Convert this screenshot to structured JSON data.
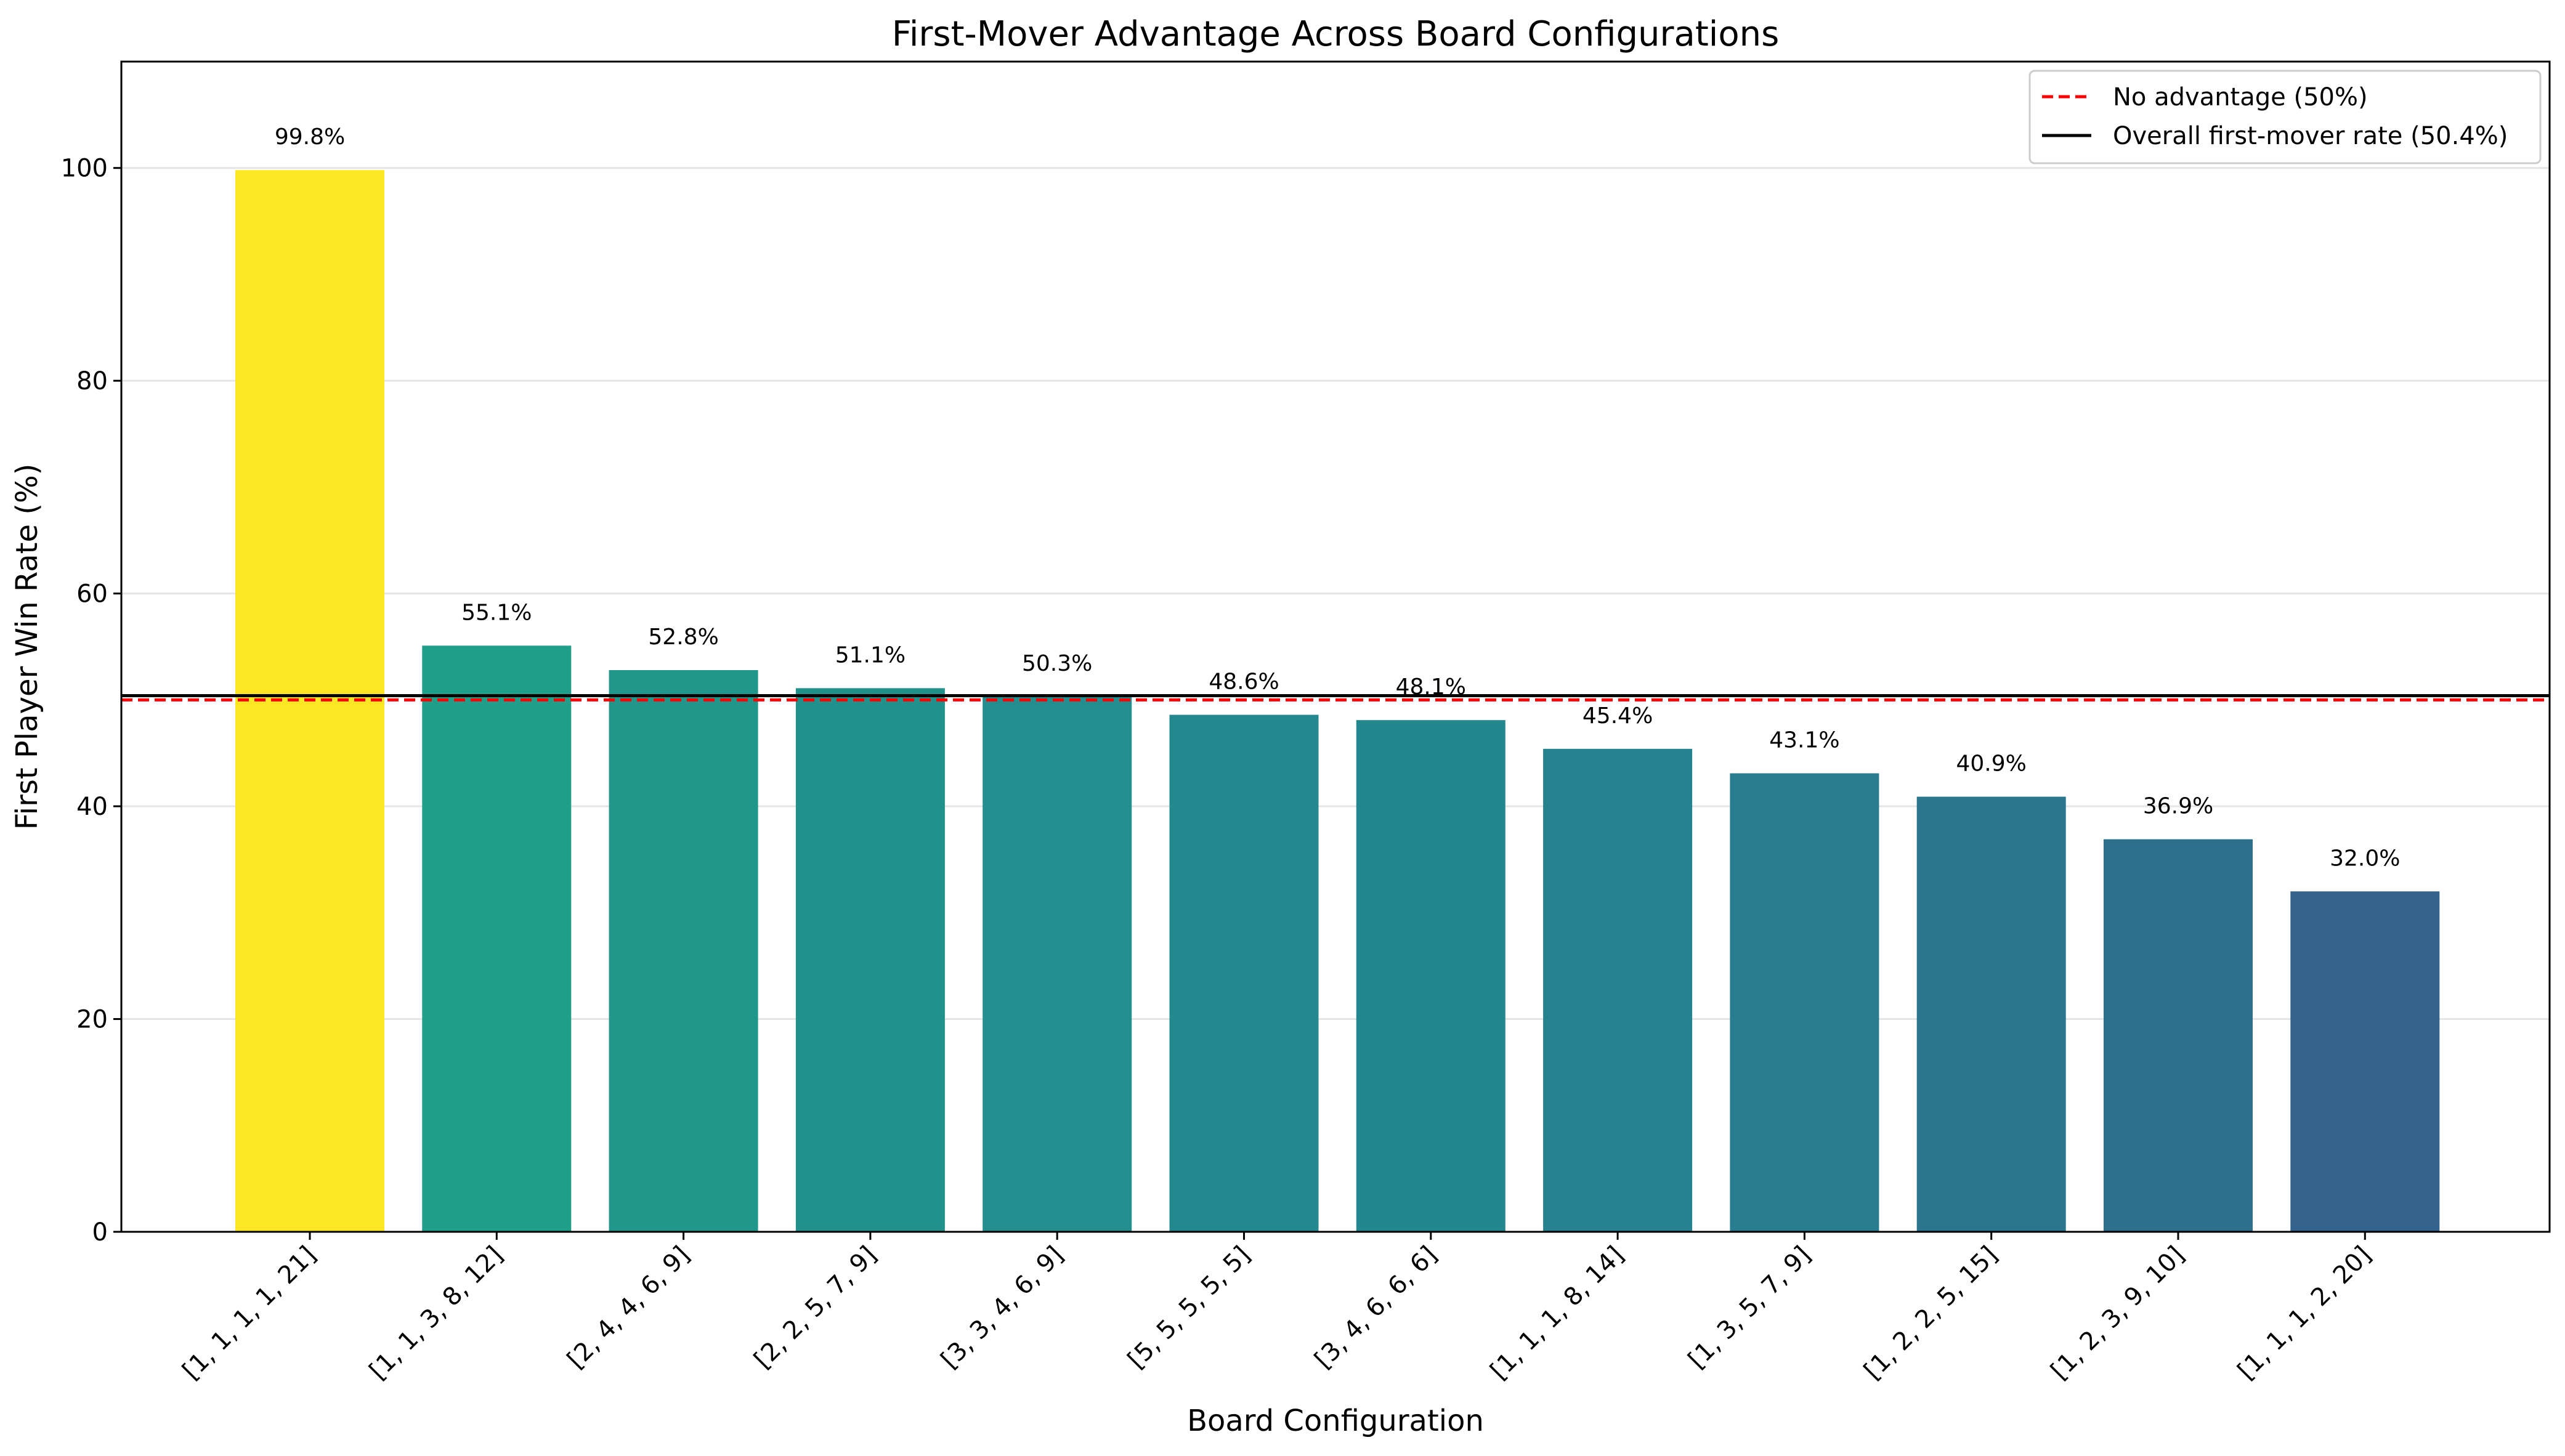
{
  "chart_data": {
    "type": "bar",
    "title": "First-Mover Advantage Across Board Configurations",
    "xlabel": "Board Configuration",
    "ylabel": "First Player Win Rate (%)",
    "ylim": [
      0,
      110
    ],
    "yticks": [
      0,
      20,
      40,
      60,
      80,
      100
    ],
    "grid": "y",
    "categories": [
      "[1, 1, 1, 1, 21]",
      "[1, 1, 3, 8, 12]",
      "[2, 4, 4, 6, 9]",
      "[2, 2, 5, 7, 9]",
      "[3, 3, 4, 6, 9]",
      "[5, 5, 5, 5, 5]",
      "[3, 4, 6, 6, 6]",
      "[1, 1, 1, 8, 14]",
      "[1, 3, 5, 7, 9]",
      "[1, 2, 2, 5, 15]",
      "[1, 2, 3, 9, 10]",
      "[1, 1, 1, 2, 20]"
    ],
    "values": [
      99.8,
      55.1,
      52.8,
      51.1,
      50.3,
      48.6,
      48.1,
      45.4,
      43.1,
      40.9,
      36.9,
      32.0
    ],
    "data_labels": [
      "99.8%",
      "55.1%",
      "52.8%",
      "51.1%",
      "50.3%",
      "48.6%",
      "48.1%",
      "45.4%",
      "43.1%",
      "40.9%",
      "36.9%",
      "32.0%"
    ],
    "bar_colors": [
      "#fde725",
      "#1f9e89",
      "#21968b",
      "#21918c",
      "#228e8d",
      "#23898e",
      "#24868e",
      "#26828e",
      "#287d8e",
      "#2a768e",
      "#2e6f8e",
      "#33638d"
    ],
    "reference_lines": [
      {
        "name": "No advantage (50%)",
        "value": 50,
        "color": "#ff0000",
        "style": "dashed"
      },
      {
        "name": "Overall first-mover rate (50.4%)",
        "value": 50.4,
        "color": "#000000",
        "style": "solid"
      }
    ],
    "legend_position": "top-right"
  }
}
